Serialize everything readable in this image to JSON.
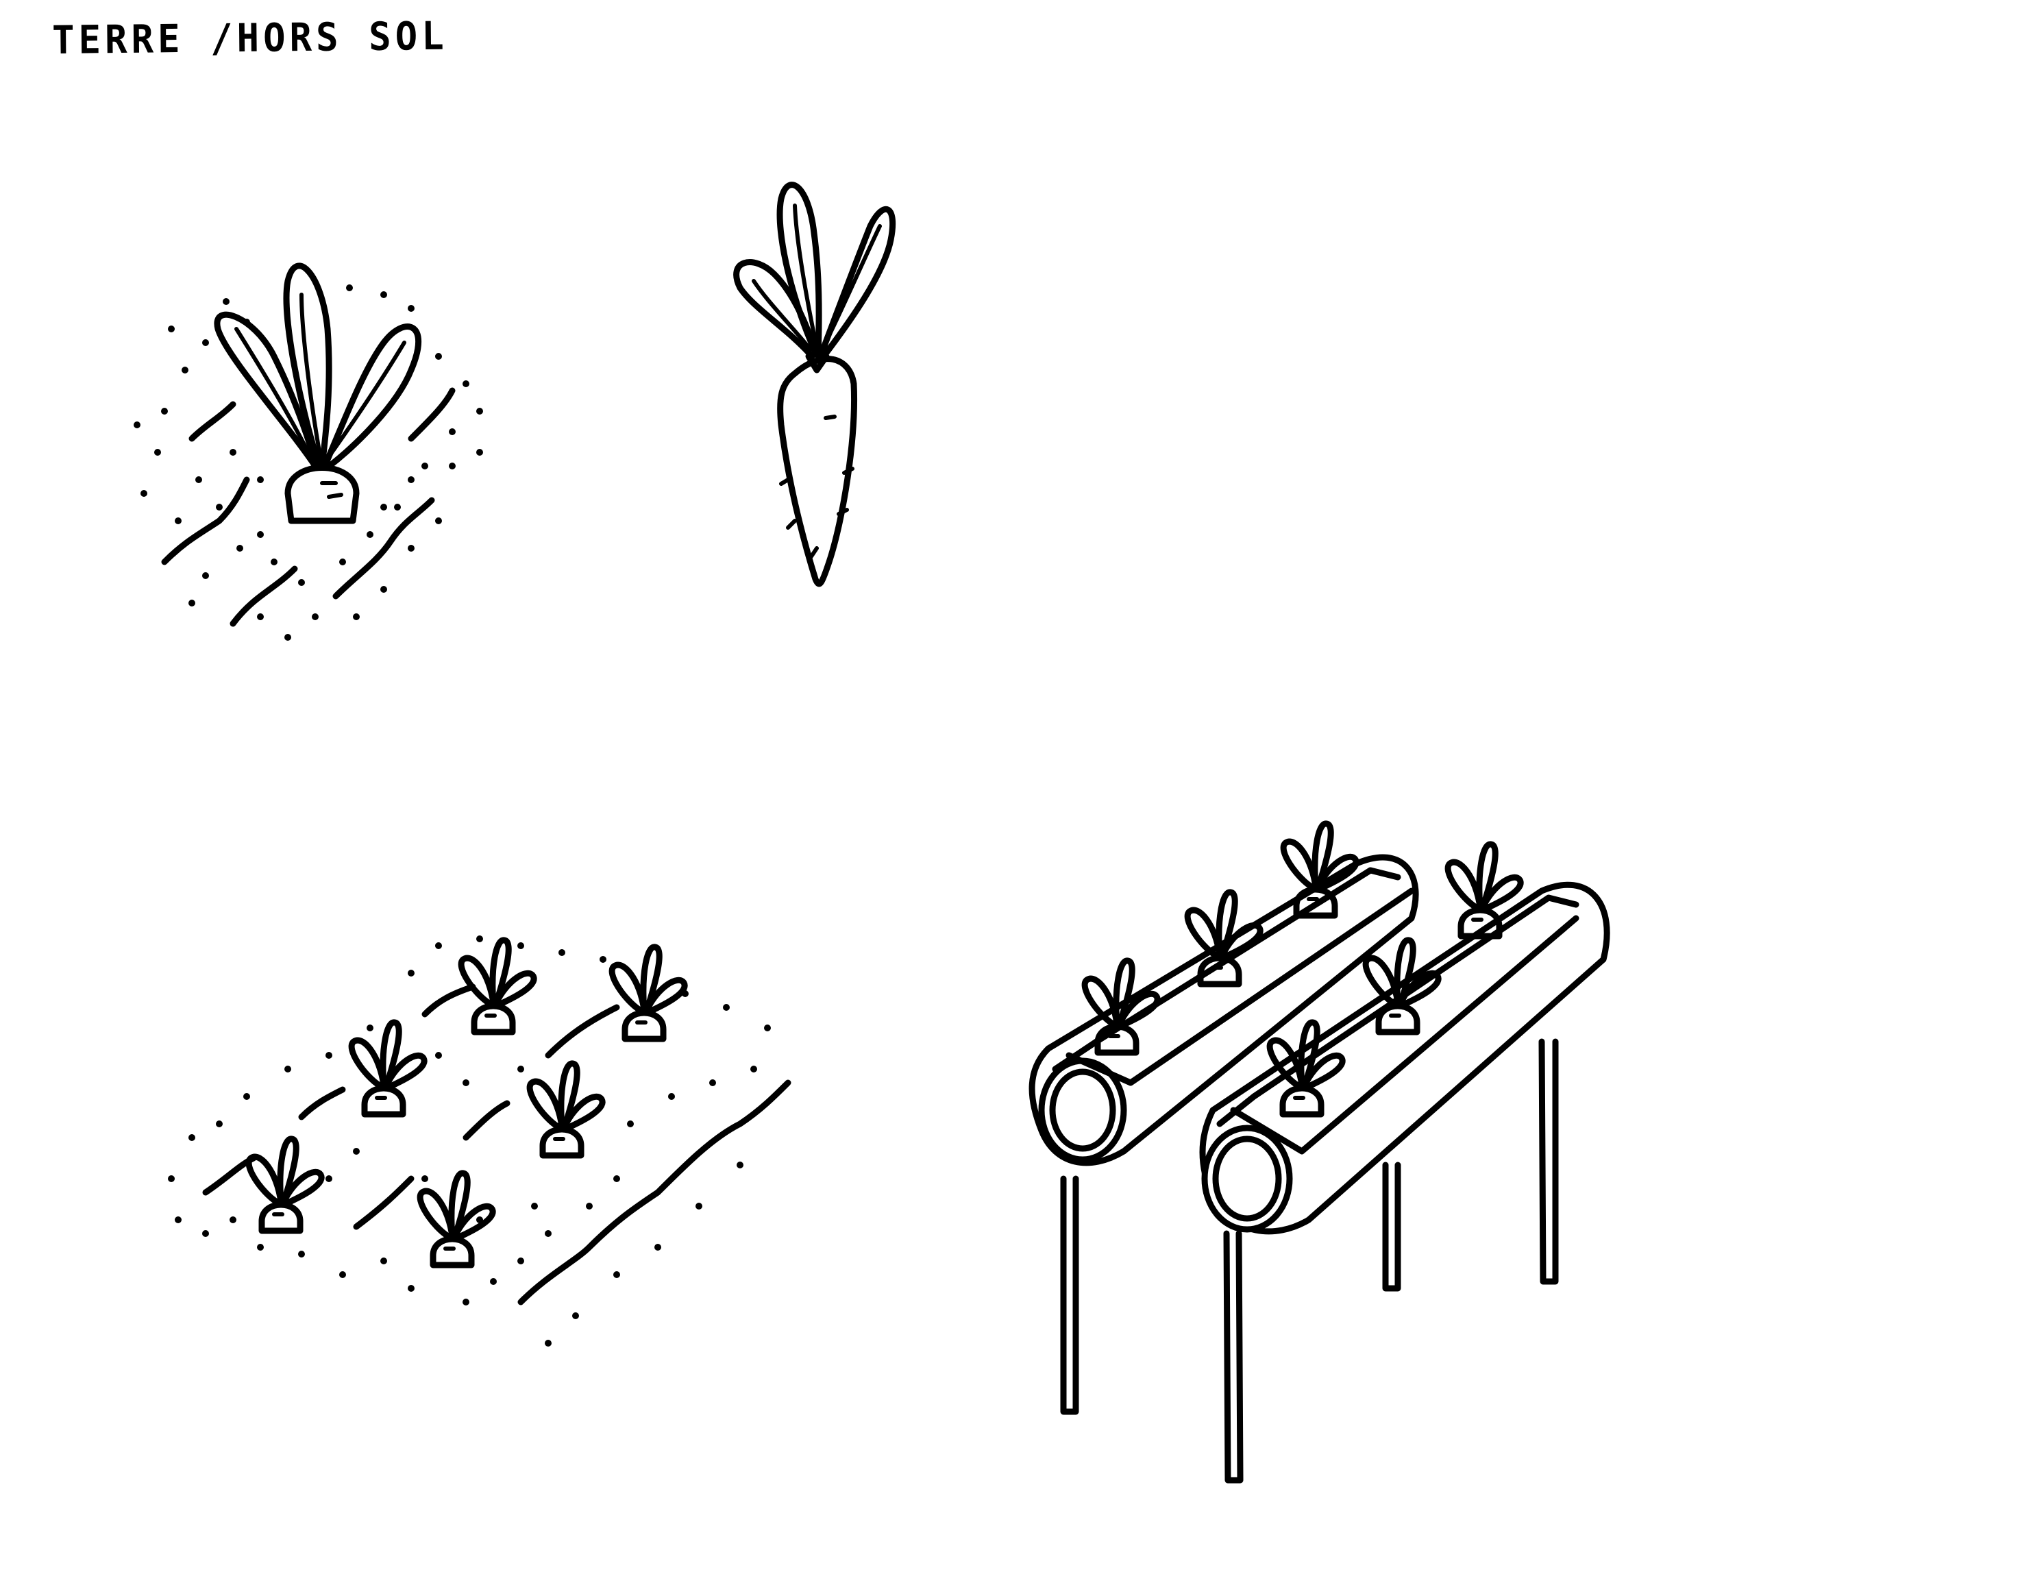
{
  "title": "TERRE /HORS SOL",
  "colors": {
    "ink": "#000000",
    "paper": "#ffffff"
  },
  "illustrations": [
    {
      "name": "single-carrot-in-soil"
    },
    {
      "name": "pulled-carrot"
    },
    {
      "name": "carrot-field-rows"
    },
    {
      "name": "hydroponic-tubes-on-stands"
    }
  ]
}
